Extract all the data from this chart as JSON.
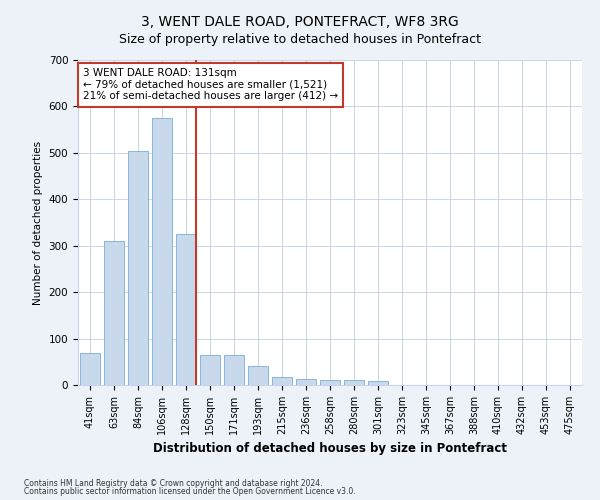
{
  "title": "3, WENT DALE ROAD, PONTEFRACT, WF8 3RG",
  "subtitle": "Size of property relative to detached houses in Pontefract",
  "xlabel": "Distribution of detached houses by size in Pontefract",
  "ylabel": "Number of detached properties",
  "categories": [
    "41sqm",
    "63sqm",
    "84sqm",
    "106sqm",
    "128sqm",
    "150sqm",
    "171sqm",
    "193sqm",
    "215sqm",
    "236sqm",
    "258sqm",
    "280sqm",
    "301sqm",
    "323sqm",
    "345sqm",
    "367sqm",
    "388sqm",
    "410sqm",
    "432sqm",
    "453sqm",
    "475sqm"
  ],
  "values": [
    70,
    310,
    505,
    575,
    325,
    65,
    65,
    40,
    18,
    13,
    10,
    10,
    8,
    0,
    0,
    0,
    0,
    0,
    0,
    0,
    0
  ],
  "bar_color": "#c9d9ec",
  "bar_edge_color": "#7aaed6",
  "vline_index": 4,
  "vline_color": "#c0392b",
  "annotation_line1": "3 WENT DALE ROAD: 131sqm",
  "annotation_line2": "← 79% of detached houses are smaller (1,521)",
  "annotation_line3": "21% of semi-detached houses are larger (412) →",
  "annotation_box_color": "white",
  "annotation_box_edge_color": "#c0392b",
  "ylim": [
    0,
    700
  ],
  "yticks": [
    0,
    100,
    200,
    300,
    400,
    500,
    600,
    700
  ],
  "footer_line1": "Contains HM Land Registry data © Crown copyright and database right 2024.",
  "footer_line2": "Contains public sector information licensed under the Open Government Licence v3.0.",
  "bg_color": "#edf2f8",
  "plot_bg_color": "#ffffff",
  "grid_color": "#c8d4e8",
  "title_fontsize": 10,
  "subtitle_fontsize": 9,
  "xlabel_fontsize": 8.5,
  "ylabel_fontsize": 7.5,
  "tick_fontsize": 7,
  "annotation_fontsize": 7.5,
  "footer_fontsize": 5.5
}
